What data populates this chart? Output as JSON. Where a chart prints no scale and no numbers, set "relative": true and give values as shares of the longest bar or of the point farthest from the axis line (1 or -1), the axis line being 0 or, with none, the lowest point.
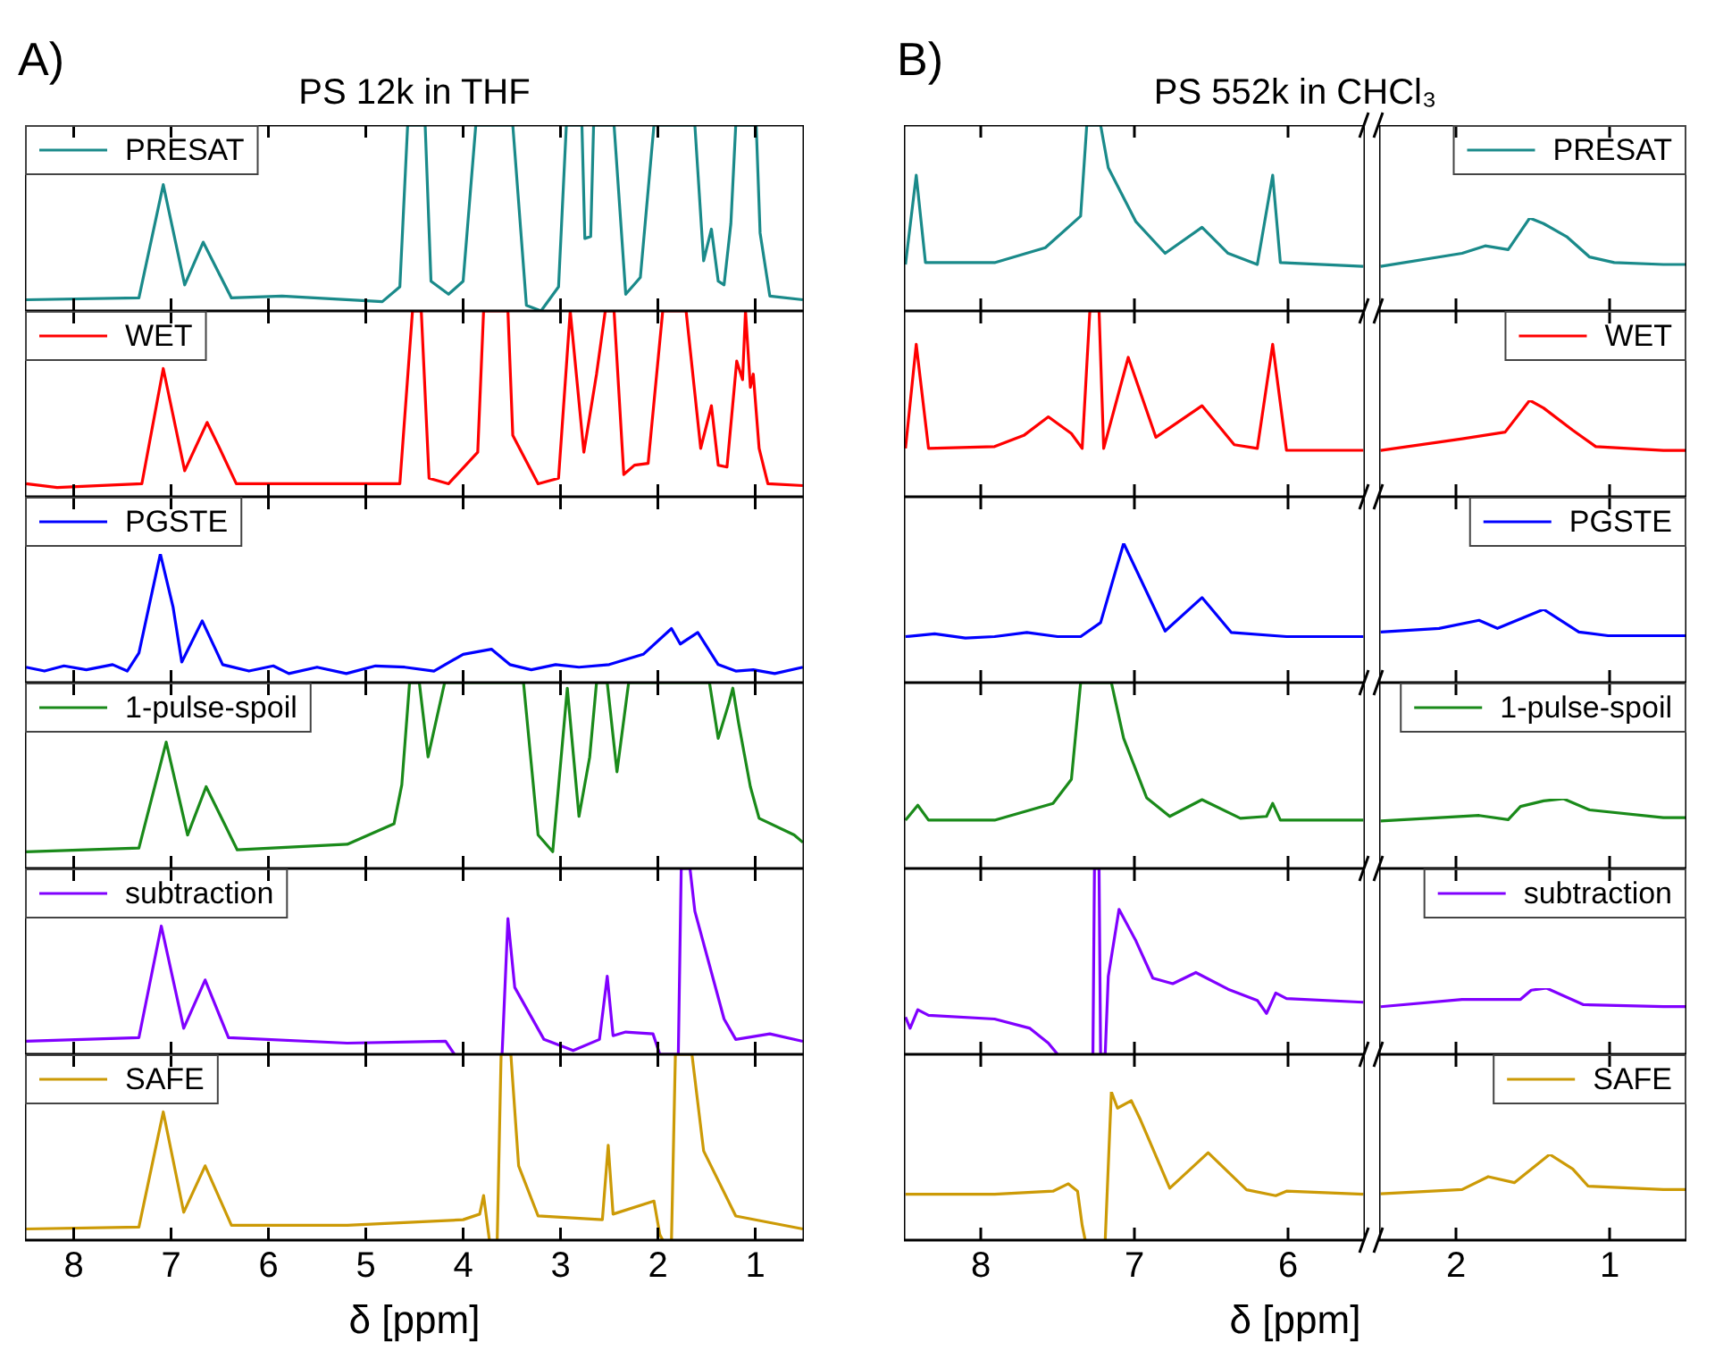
{
  "chart_data": [
    {
      "type": "line",
      "title": "PS 12k in THF",
      "annotations": [
        "A)"
      ],
      "relative": true,
      "xlim": [
        8.5,
        0.5
      ],
      "xticks": [
        8,
        7,
        6,
        5,
        4,
        3,
        2,
        1
      ],
      "tick_labels": false,
      "legend": "top left",
      "series": [
        {
          "name": "PRESAT",
          "color": "#1a8a8a",
          "x": [
            8.49,
            7.33,
            7.08,
            6.86,
            6.67,
            6.38,
            5.86,
            4.83,
            4.65,
            4.57,
            4.39,
            4.33,
            4.15,
            4.0,
            3.87,
            3.49,
            3.35,
            3.2,
            3.02,
            2.94,
            2.78,
            2.75,
            2.69,
            2.66,
            2.45,
            2.33,
            2.18,
            2.04,
            1.62,
            1.53,
            1.45,
            1.38,
            1.32,
            1.25,
            1.2,
            0.99,
            0.95,
            0.85,
            0.51
          ],
          "values": [
            0.06,
            0.07,
            0.68,
            0.14,
            0.37,
            0.07,
            0.08,
            0.05,
            0.13,
            1,
            1,
            0.16,
            0.09,
            0.16,
            1,
            1,
            0.03,
            0,
            0.13,
            1,
            1,
            0.39,
            0.4,
            1,
            1,
            0.09,
            0.18,
            1,
            1,
            0.27,
            0.44,
            0.16,
            0.14,
            0.47,
            1,
            1,
            0.42,
            0.08,
            0.06
          ]
        }
      ]
    },
    {
      "type": "line",
      "relative": true,
      "xlim": [
        8.5,
        0.5
      ],
      "xticks": [
        8,
        7,
        6,
        5,
        4,
        3,
        2,
        1
      ],
      "tick_labels": false,
      "legend": "top left",
      "series": [
        {
          "name": "WET",
          "color": "#ff0000",
          "x": [
            8.49,
            8.17,
            7.3,
            7.08,
            6.86,
            6.63,
            6.5,
            6.33,
            4.65,
            4.52,
            4.43,
            4.35,
            4.15,
            3.85,
            3.79,
            3.54,
            3.49,
            3.23,
            3.02,
            2.9,
            2.76,
            2.63,
            2.54,
            2.45,
            2.35,
            2.24,
            2.1,
            1.95,
            1.71,
            1.56,
            1.45,
            1.38,
            1.29,
            1.19,
            1.13,
            1.1,
            1.05,
            1.02,
            0.96,
            0.87,
            0.51
          ],
          "values": [
            0.07,
            0.05,
            0.07,
            0.69,
            0.14,
            0.4,
            0.26,
            0.07,
            0.07,
            1,
            1,
            0.1,
            0.07,
            0.24,
            1,
            1,
            0.33,
            0.07,
            0.1,
            1,
            0.24,
            0.66,
            1,
            1,
            0.12,
            0.17,
            0.18,
            1,
            1,
            0.26,
            0.49,
            0.17,
            0.16,
            0.73,
            0.63,
            1,
            0.59,
            0.66,
            0.26,
            0.07,
            0.06
          ]
        }
      ]
    },
    {
      "type": "line",
      "relative": true,
      "xlim": [
        8.5,
        0.5
      ],
      "xticks": [
        8,
        7,
        6,
        5,
        4,
        3,
        2,
        1
      ],
      "tick_labels": false,
      "legend": "top left",
      "series": [
        {
          "name": "PGSTE",
          "color": "#0000ff",
          "x": [
            8.49,
            8.3,
            8.1,
            7.87,
            7.6,
            7.45,
            7.33,
            7.11,
            6.98,
            6.89,
            6.68,
            6.47,
            6.2,
            5.95,
            5.79,
            5.5,
            5.2,
            4.9,
            4.6,
            4.3,
            4.0,
            3.71,
            3.52,
            3.3,
            3.05,
            2.81,
            2.5,
            2.15,
            1.86,
            1.77,
            1.59,
            1.38,
            1.2,
            1.02,
            0.8,
            0.51
          ],
          "values": [
            0.12,
            0.09,
            0.13,
            0.1,
            0.14,
            0.09,
            0.23,
            1,
            0.59,
            0.16,
            0.48,
            0.14,
            0.09,
            0.13,
            0.07,
            0.12,
            0.07,
            0.13,
            0.12,
            0.09,
            0.22,
            0.26,
            0.14,
            0.1,
            0.14,
            0.12,
            0.14,
            0.22,
            0.42,
            0.3,
            0.39,
            0.14,
            0.09,
            0.1,
            0.07,
            0.12
          ]
        }
      ]
    },
    {
      "type": "line",
      "relative": true,
      "xlim": [
        8.5,
        0.5
      ],
      "xticks": [
        8,
        7,
        6,
        5,
        4,
        3,
        2,
        1
      ],
      "tick_labels": false,
      "legend": "top left",
      "series": [
        {
          "name": "1-pulse-spoil",
          "color": "#1a8a1a",
          "x": [
            8.49,
            7.33,
            7.05,
            6.83,
            6.64,
            6.32,
            5.19,
            4.71,
            4.63,
            4.55,
            4.45,
            4.36,
            4.19,
            3.38,
            3.23,
            3.08,
            2.93,
            2.81,
            2.7,
            2.63,
            2.52,
            2.42,
            2.3,
            1.47,
            1.38,
            1.27,
            1.23,
            1.17,
            1.05,
            0.96,
            0.6,
            0.51
          ],
          "values": [
            0.09,
            0.11,
            0.68,
            0.18,
            0.44,
            0.1,
            0.13,
            0.24,
            0.45,
            1,
            1,
            0.6,
            1,
            1,
            0.18,
            0.09,
            0.97,
            0.28,
            0.6,
            1,
            1,
            0.52,
            1,
            1,
            0.7,
            0.89,
            0.97,
            0.78,
            0.44,
            0.27,
            0.18,
            0.14
          ]
        }
      ]
    },
    {
      "type": "line",
      "relative": true,
      "xlim": [
        8.5,
        0.5
      ],
      "xticks": [
        8,
        7,
        6,
        5,
        4,
        3,
        2,
        1
      ],
      "tick_labels": false,
      "legend": "top left",
      "series": [
        {
          "name": "subtraction",
          "color": "#8000ff",
          "x": [
            8.49,
            7.33,
            7.1,
            6.87,
            6.65,
            6.41,
            5.19,
            4.18,
            4.09,
            3.85,
            3.6,
            3.54,
            3.47,
            3.17,
            2.87,
            2.6,
            2.52,
            2.46,
            2.33,
            2.05,
            1.98,
            1.79,
            1.76,
            1.67,
            1.62,
            1.32,
            1.2,
            0.85,
            0.51
          ],
          "values": [
            0.07,
            0.09,
            0.69,
            0.14,
            0.4,
            0.09,
            0.06,
            0.07,
            0,
            null,
            0,
            0.73,
            0.36,
            0.08,
            0.02,
            0.08,
            0.42,
            0.1,
            0.12,
            0.11,
            0,
            0,
            1,
            1,
            0.77,
            0.19,
            0.08,
            0.11,
            0.07
          ]
        }
      ]
    },
    {
      "type": "line",
      "xlabel": "δ [ppm]",
      "relative": true,
      "xlim": [
        8.5,
        0.5
      ],
      "xticks": [
        8,
        7,
        6,
        5,
        4,
        3,
        2,
        1
      ],
      "tick_labels": "x",
      "legend": "top left",
      "series": [
        {
          "name": "SAFE",
          "color": "#cc9a06",
          "x": [
            8.49,
            7.33,
            7.08,
            6.87,
            6.65,
            6.38,
            5.19,
            4.0,
            3.83,
            3.79,
            3.73,
            3.68,
            3.65,
            3.61,
            3.51,
            3.43,
            3.23,
            2.57,
            2.51,
            2.46,
            2.04,
            1.98,
            1.95,
            1.88,
            1.86,
            1.82,
            1.65,
            1.53,
            1.2,
            0.51
          ],
          "values": [
            0.06,
            0.07,
            0.69,
            0.15,
            0.4,
            0.08,
            0.08,
            0.11,
            0.14,
            0.24,
            0,
            null,
            0,
            1,
            1,
            0.4,
            0.13,
            0.11,
            0.51,
            0.14,
            0.21,
            0.03,
            0,
            null,
            0,
            1,
            1,
            0.48,
            0.13,
            0.06
          ]
        }
      ]
    },
    {
      "type": "line",
      "title": "PS 552k in CHCl₃",
      "annotations": [
        "B)"
      ],
      "relative": true,
      "xlim": [
        8.5,
        5.5
      ],
      "xticks": [
        8,
        7,
        6
      ],
      "tick_labels": false,
      "series": [
        {
          "color": "#1a8a8a",
          "x": [
            8.49,
            8.42,
            8.36,
            7.91,
            7.58,
            7.35,
            7.31,
            7.22,
            7.17,
            6.99,
            6.8,
            6.56,
            6.39,
            6.2,
            6.1,
            6.05,
            5.51
          ],
          "values": [
            0.25,
            0.73,
            0.26,
            0.26,
            0.34,
            0.51,
            1,
            1,
            0.77,
            0.48,
            0.31,
            0.45,
            0.31,
            0.25,
            0.73,
            0.26,
            0.24
          ]
        }
      ]
    },
    {
      "type": "line",
      "relative": true,
      "xlim": [
        2.5,
        0.5
      ],
      "xticks": [
        2,
        1
      ],
      "tick_labels": false,
      "legend": "top right",
      "series": [
        {
          "name": "PRESAT",
          "color": "#1a8a8a",
          "x": [
            2.49,
            1.96,
            1.81,
            1.66,
            1.52,
            1.43,
            1.28,
            1.13,
            0.97,
            0.65,
            0.5
          ],
          "values": [
            0.48,
            0.62,
            0.7,
            0.66,
            1,
            0.94,
            0.8,
            0.58,
            0.52,
            0.5,
            0.5
          ]
        }
      ]
    },
    {
      "type": "line",
      "relative": true,
      "xlim": [
        8.5,
        5.5
      ],
      "xticks": [
        8,
        7,
        6
      ],
      "tick_labels": false,
      "series": [
        {
          "color": "#ff0000",
          "x": [
            8.49,
            8.42,
            8.34,
            7.91,
            7.72,
            7.56,
            7.41,
            7.34,
            7.29,
            7.23,
            7.2,
            7.04,
            6.86,
            6.56,
            6.35,
            6.2,
            6.1,
            6.01,
            5.51
          ],
          "values": [
            0.26,
            0.82,
            0.26,
            0.27,
            0.33,
            0.43,
            0.34,
            0.26,
            1,
            1,
            0.26,
            0.75,
            0.32,
            0.49,
            0.28,
            0.26,
            0.82,
            0.25,
            0.25
          ]
        }
      ]
    },
    {
      "type": "line",
      "relative": true,
      "xlim": [
        2.5,
        0.5
      ],
      "xticks": [
        2,
        1
      ],
      "tick_labels": false,
      "legend": "top right",
      "series": [
        {
          "name": "WET",
          "color": "#ff0000",
          "x": [
            2.49,
            1.96,
            1.68,
            1.52,
            1.43,
            1.24,
            1.09,
            0.65,
            0.5
          ],
          "values": [
            0.48,
            0.6,
            0.67,
            1,
            0.92,
            0.69,
            0.52,
            0.48,
            0.48
          ]
        }
      ]
    },
    {
      "type": "line",
      "relative": true,
      "xlim": [
        8.5,
        5.5
      ],
      "xticks": [
        8,
        7,
        6
      ],
      "tick_labels": false,
      "series": [
        {
          "color": "#0000ff",
          "x": [
            8.49,
            8.3,
            8.1,
            7.91,
            7.7,
            7.5,
            7.35,
            7.22,
            7.07,
            6.8,
            6.56,
            6.37,
            6.01,
            5.51
          ],
          "values": [
            0.33,
            0.35,
            0.32,
            0.33,
            0.36,
            0.33,
            0.33,
            0.43,
            1,
            0.37,
            0.61,
            0.36,
            0.33,
            0.33
          ]
        }
      ]
    },
    {
      "type": "line",
      "relative": true,
      "xlim": [
        2.5,
        0.5
      ],
      "xticks": [
        2,
        1
      ],
      "tick_labels": false,
      "legend": "top right",
      "series": [
        {
          "name": "PGSTE",
          "color": "#0000ff",
          "x": [
            2.49,
            2.11,
            1.85,
            1.73,
            1.43,
            1.2,
            1.01,
            0.65,
            0.5
          ],
          "values": [
            0.69,
            0.74,
            0.85,
            0.74,
            1,
            0.69,
            0.64,
            0.64,
            0.64
          ]
        }
      ]
    },
    {
      "type": "line",
      "relative": true,
      "xlim": [
        8.5,
        5.5
      ],
      "xticks": [
        8,
        7,
        6
      ],
      "tick_labels": false,
      "series": [
        {
          "color": "#1a8a1a",
          "x": [
            8.49,
            8.41,
            8.34,
            7.91,
            7.53,
            7.41,
            7.35,
            7.15,
            7.07,
            6.92,
            6.77,
            6.56,
            6.31,
            6.14,
            6.1,
            6.05,
            5.51
          ],
          "values": [
            0.26,
            0.34,
            0.26,
            0.26,
            0.35,
            0.48,
            1,
            1,
            0.7,
            0.38,
            0.28,
            0.37,
            0.27,
            0.28,
            0.35,
            0.26,
            0.26
          ]
        }
      ]
    },
    {
      "type": "line",
      "relative": true,
      "xlim": [
        2.5,
        0.5
      ],
      "xticks": [
        2,
        1
      ],
      "tick_labels": false,
      "legend": "top right",
      "series": [
        {
          "name": "1-pulse-spoil",
          "color": "#1a8a1a",
          "x": [
            2.49,
            1.85,
            1.66,
            1.58,
            1.43,
            1.3,
            1.13,
            0.65,
            0.5
          ],
          "values": [
            0.68,
            0.76,
            0.7,
            0.89,
            0.97,
            1,
            0.84,
            0.73,
            0.73
          ]
        }
      ]
    },
    {
      "type": "line",
      "relative": true,
      "xlim": [
        8.5,
        5.5
      ],
      "xticks": [
        8,
        7,
        6
      ],
      "tick_labels": false,
      "series": [
        {
          "color": "#8000ff",
          "x": [
            8.49,
            8.46,
            8.41,
            8.34,
            7.91,
            7.68,
            7.56,
            7.5,
            7.4,
            7.27,
            7.26,
            7.23,
            7.22,
            7.19,
            7.17,
            7.1,
            6.99,
            6.88,
            6.75,
            6.6,
            6.39,
            6.2,
            6.14,
            6.08,
            6.01,
            5.51
          ],
          "values": [
            0.2,
            0.14,
            0.24,
            0.21,
            0.19,
            0.14,
            0.06,
            0,
            null,
            0,
            1,
            1,
            0,
            0,
            0.42,
            0.78,
            0.61,
            0.41,
            0.38,
            0.44,
            0.35,
            0.29,
            0.22,
            0.33,
            0.3,
            0.28
          ]
        }
      ]
    },
    {
      "type": "line",
      "relative": true,
      "xlim": [
        2.5,
        0.5
      ],
      "xticks": [
        2,
        1
      ],
      "tick_labels": false,
      "legend": "top right",
      "series": [
        {
          "name": "subtraction",
          "color": "#8000ff",
          "x": [
            2.49,
            1.96,
            1.58,
            1.51,
            1.41,
            1.17,
            0.65,
            0.5
          ],
          "values": [
            0.72,
            0.83,
            0.83,
            0.97,
            1,
            0.75,
            0.72,
            0.72
          ]
        }
      ]
    },
    {
      "type": "line",
      "xlabel": "δ [ppm]",
      "relative": true,
      "xlim": [
        8.5,
        5.5
      ],
      "xticks": [
        8,
        7,
        6
      ],
      "tick_labels": "x",
      "series": [
        {
          "color": "#cc9a06",
          "x": [
            8.49,
            7.91,
            7.53,
            7.43,
            7.37,
            7.34,
            7.32,
            7.25,
            7.19,
            7.15,
            7.11,
            7.02,
            6.96,
            6.77,
            6.52,
            6.27,
            6.08,
            6.01,
            5.51
          ],
          "values": [
            0.31,
            0.31,
            0.33,
            0.38,
            0.33,
            0.1,
            0,
            null,
            0,
            1,
            0.89,
            0.94,
            0.81,
            0.35,
            0.59,
            0.34,
            0.3,
            0.33,
            0.31
          ]
        }
      ]
    },
    {
      "type": "line",
      "relative": true,
      "xlim": [
        2.5,
        0.5
      ],
      "xticks": [
        2,
        1
      ],
      "tick_labels": "x",
      "legend": "top right",
      "series": [
        {
          "name": "SAFE",
          "color": "#cc9a06",
          "x": [
            2.49,
            1.96,
            1.79,
            1.62,
            1.39,
            1.24,
            1.14,
            0.65,
            0.5
          ],
          "values": [
            0.54,
            0.59,
            0.74,
            0.67,
            1,
            0.83,
            0.63,
            0.59,
            0.59
          ]
        }
      ]
    }
  ]
}
